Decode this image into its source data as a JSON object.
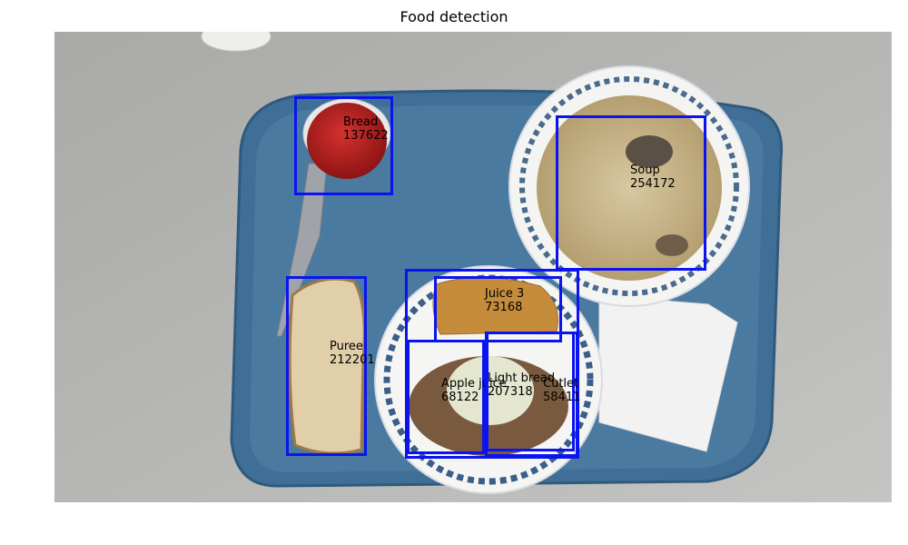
{
  "title": "Food detection",
  "detections": [
    {
      "label": "Bread",
      "score": "137622"
    },
    {
      "label": "Soup",
      "score": "254172"
    },
    {
      "label": "Juice 3",
      "score": "73168"
    },
    {
      "label": "Puree",
      "score": "212201"
    },
    {
      "label": "Apple juice",
      "score": "68122"
    },
    {
      "label": "Light bread",
      "score": "207318"
    },
    {
      "label": "Cutlet",
      "score": "58411"
    }
  ],
  "colors": {
    "box": "#0b14ee",
    "tray": "#3f6f96",
    "table": "#b8b8b6"
  }
}
